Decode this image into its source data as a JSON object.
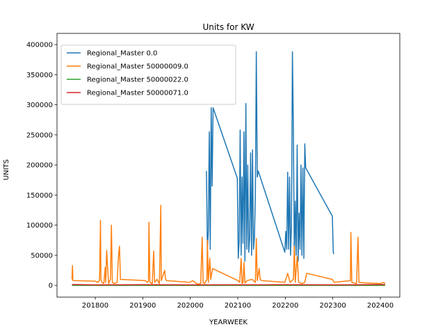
{
  "chart_data": {
    "type": "line",
    "title": "Units for KW",
    "xlabel": "YEARWEEK",
    "ylabel": "UNITS",
    "xlim": [
      201719.5,
      202441
    ],
    "ylim": [
      -19500,
      418500
    ],
    "xticks": [
      201800,
      201900,
      202000,
      202100,
      202200,
      202300,
      202400
    ],
    "yticks": [
      0,
      50000,
      100000,
      150000,
      200000,
      250000,
      300000,
      350000,
      400000
    ],
    "legend": "upper left",
    "series": [
      {
        "name": "Regional_Master 0.0",
        "color": "#1f77b4",
        "x": [
          202034,
          202036,
          202038,
          202040,
          202042,
          202044,
          202046,
          202048,
          202099,
          202101,
          202103,
          202105,
          202107,
          202109,
          202111,
          202113,
          202115,
          202117,
          202119,
          202121,
          202123,
          202125,
          202127,
          202129,
          202131,
          202133,
          202135,
          202137,
          202139,
          202141,
          202143,
          202199,
          202201,
          202203,
          202205,
          202207,
          202209,
          202211,
          202213,
          202215,
          202217,
          202219,
          202221,
          202223,
          202225,
          202227,
          202229,
          202231,
          202233,
          202235,
          202237,
          202239,
          202241,
          202243,
          202299,
          202301,
          202302
        ],
        "values": [
          190000,
          60000,
          90000,
          255000,
          60000,
          295000,
          165000,
          295000,
          178000,
          45000,
          75000,
          258000,
          50000,
          180000,
          70000,
          255000,
          40000,
          302000,
          60000,
          200000,
          55000,
          80000,
          220000,
          50000,
          225000,
          60000,
          80000,
          150000,
          388000,
          180000,
          190000,
          55000,
          90000,
          60000,
          188000,
          60000,
          180000,
          50000,
          100000,
          388000,
          260000,
          40000,
          140000,
          50000,
          233000,
          40000,
          120000,
          60000,
          200000,
          50000,
          195000,
          45000,
          235000,
          195000,
          115000,
          55000,
          52000
        ]
      },
      {
        "name": "Regional_Master 50000009.0",
        "color": "#ff7f0e",
        "x": [
          201751,
          201752,
          201753,
          201800,
          201805,
          201809,
          201811,
          201812,
          201814,
          201818,
          201821,
          201822,
          201824,
          201828,
          201832,
          201834,
          201836,
          201840,
          201846,
          201849,
          201851,
          201853,
          201905,
          201910,
          201912,
          201913,
          201915,
          201920,
          201923,
          201925,
          201930,
          201935,
          201938,
          201939,
          201942,
          201946,
          201948,
          201950,
          201999,
          202005,
          202015,
          202022,
          202025,
          202027,
          202030,
          202035,
          202036,
          202038,
          202041,
          202043,
          202047,
          202100,
          202104,
          202107,
          202109,
          202111,
          202113,
          202115,
          202120,
          202130,
          202137,
          202139,
          202141,
          202145,
          202147,
          202150,
          202199,
          202205,
          202210,
          202217,
          202219,
          202221,
          202225,
          202228,
          202235,
          202241,
          202245,
          202299,
          202303,
          202337,
          202338,
          202340,
          202350,
          202353,
          202355,
          202370,
          202400,
          202407,
          202410
        ],
        "values": [
          10000,
          33000,
          8000,
          7000,
          5000,
          8000,
          108000,
          10000,
          5000,
          3000,
          30000,
          5000,
          58000,
          3000,
          10000,
          100000,
          5000,
          3000,
          5000,
          50000,
          65000,
          10000,
          8000,
          5000,
          8000,
          105000,
          5000,
          3000,
          57000,
          5000,
          10000,
          3000,
          133000,
          8000,
          15000,
          25000,
          10000,
          8000,
          5000,
          8000,
          2000,
          3000,
          80000,
          5000,
          3000,
          10000,
          75000,
          5000,
          45000,
          10000,
          28000,
          8000,
          5000,
          45000,
          3000,
          5000,
          38000,
          4000,
          8000,
          10000,
          5000,
          78000,
          8000,
          28000,
          10000,
          8000,
          5000,
          20000,
          5000,
          10000,
          65000,
          5000,
          48000,
          5000,
          3000,
          5000,
          20000,
          10000,
          5000,
          8000,
          88000,
          5000,
          3000,
          80000,
          5000,
          4000,
          3000,
          5000,
          3000
        ]
      },
      {
        "name": "Regional_Master 50000022.0",
        "color": "#2ca02c",
        "x": [
          201751,
          202000,
          202200,
          202410
        ],
        "values": [
          0,
          0,
          0,
          0
        ]
      },
      {
        "name": "Regional_Master 50000071.0",
        "color": "#d62728",
        "x": [
          201751,
          201800,
          201900,
          202000,
          202100,
          202200,
          202300,
          202410
        ],
        "values": [
          1500,
          800,
          1200,
          900,
          1000,
          1100,
          800,
          1500
        ]
      }
    ]
  }
}
